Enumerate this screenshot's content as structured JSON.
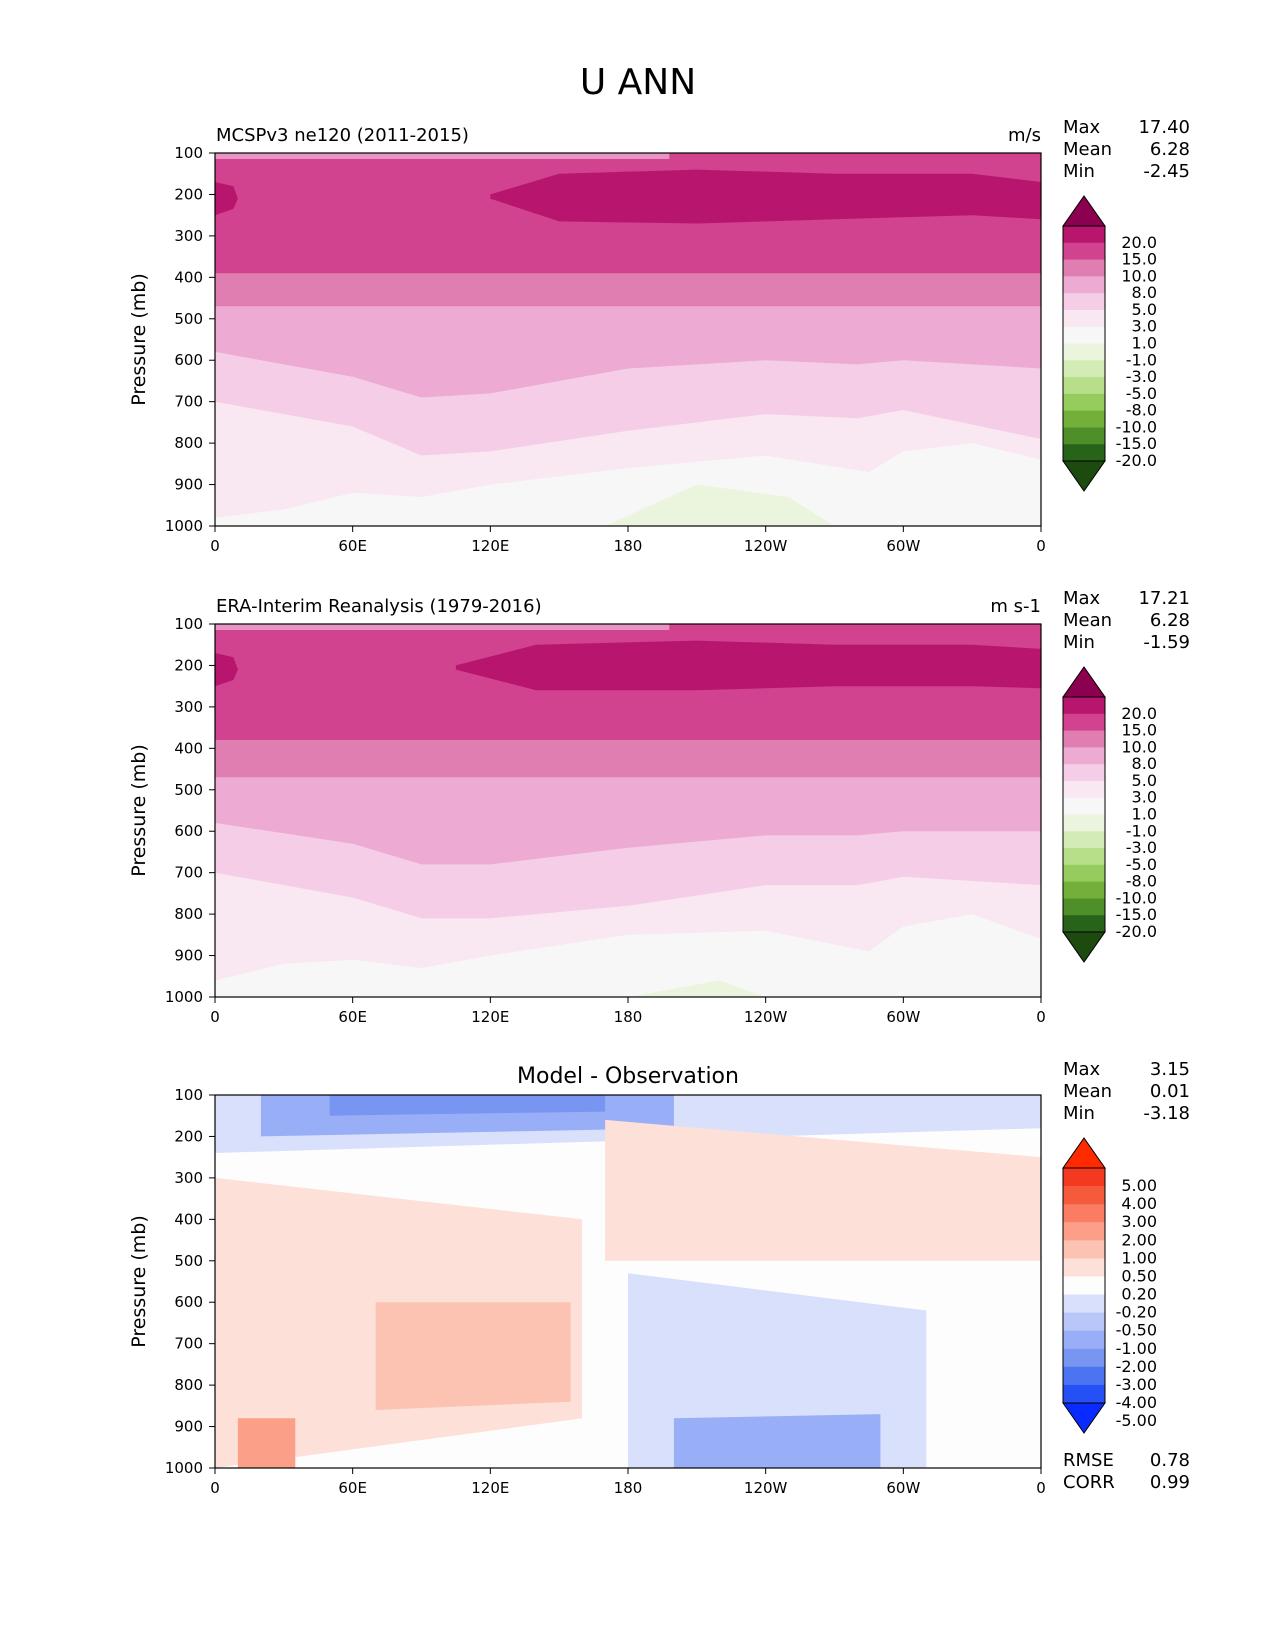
{
  "figure": {
    "title": "U ANN"
  },
  "x_ticks": [
    "0",
    "60E",
    "120E",
    "180",
    "120W",
    "60W",
    "0"
  ],
  "y_ticks": [
    "100",
    "200",
    "300",
    "400",
    "500",
    "600",
    "700",
    "800",
    "900",
    "1000"
  ],
  "colors": {
    "magenta_green": [
      "#8c0050",
      "#b8166e",
      "#d1428f",
      "#e07db1",
      "#edaad3",
      "#f6cde6",
      "#f9e7f2",
      "#f7f7f7",
      "#ebf5de",
      "#d3ecb5",
      "#b7df8a",
      "#96cc5e",
      "#73b03a",
      "#4f8f2a",
      "#276419",
      "#1c4a0f"
    ],
    "diff": [
      "#0a2bff",
      "#2450f5",
      "#4c73f1",
      "#7895f1",
      "#98aef6",
      "#b8c7f8",
      "#d8e0fb",
      "#fdfdfd",
      "#fde0d8",
      "#fcc3b2",
      "#fb9f88",
      "#f97c63",
      "#f65a3d",
      "#f33a20",
      "#ff2a00"
    ]
  },
  "panels": [
    {
      "title_left": "MCSPv3 ne120 (2011-2015)",
      "title_center": "",
      "units": "m/s",
      "ylabel": "Pressure (mb)",
      "stats": [
        [
          "Max",
          "17.40"
        ],
        [
          "Mean",
          "6.28"
        ],
        [
          "Min",
          "-2.45"
        ]
      ],
      "extra_stats": [],
      "colorbar_labels": [
        "20.0",
        "15.0",
        "10.0",
        "8.0",
        "5.0",
        "3.0",
        "1.0",
        "-1.0",
        "-3.0",
        "-5.0",
        "-8.0",
        "-10.0",
        "-15.0",
        "-20.0"
      ],
      "palette": "magenta_green"
    },
    {
      "title_left": "ERA-Interim Reanalysis (1979-2016)",
      "title_center": "",
      "units": "m s-1",
      "ylabel": "Pressure (mb)",
      "stats": [
        [
          "Max",
          "17.21"
        ],
        [
          "Mean",
          "6.28"
        ],
        [
          "Min",
          "-1.59"
        ]
      ],
      "extra_stats": [],
      "colorbar_labels": [
        "20.0",
        "15.0",
        "10.0",
        "8.0",
        "5.0",
        "3.0",
        "1.0",
        "-1.0",
        "-3.0",
        "-5.0",
        "-8.0",
        "-10.0",
        "-15.0",
        "-20.0"
      ],
      "palette": "magenta_green"
    },
    {
      "title_left": "",
      "title_center": "Model - Observation",
      "units": "",
      "ylabel": "Pressure (mb)",
      "stats": [
        [
          "Max",
          "3.15"
        ],
        [
          "Mean",
          "0.01"
        ],
        [
          "Min",
          "-3.18"
        ]
      ],
      "extra_stats": [
        [
          "RMSE",
          "0.78"
        ],
        [
          "CORR",
          "0.99"
        ]
      ],
      "colorbar_labels": [
        "5.00",
        "4.00",
        "3.00",
        "2.00",
        "1.00",
        "0.50",
        "0.20",
        "-0.20",
        "-0.50",
        "-1.00",
        "-2.00",
        "-3.00",
        "-4.00",
        "-5.00"
      ],
      "palette": "diff"
    }
  ],
  "chart_data": [
    {
      "type": "heatmap",
      "title": "MCSPv3 ne120 (2011-2015)",
      "units": "m/s",
      "ylabel": "Pressure (mb)",
      "x_range": [
        0,
        360
      ],
      "y_range": [
        1000,
        100
      ],
      "levels": [
        -20,
        -15,
        -10,
        -8,
        -5,
        -3,
        -1,
        1,
        3,
        5,
        8,
        10,
        15,
        20
      ],
      "layers": [
        {
          "level": 8,
          "x": [
            0,
            360
          ],
          "top": [
            100,
            100
          ],
          "bottom": [
            390,
            390
          ]
        },
        {
          "level": 5,
          "x": [
            0,
            360
          ],
          "top": [
            100,
            100
          ],
          "bottom": [
            470,
            470
          ]
        },
        {
          "level": 3,
          "x": [
            0,
            60,
            90,
            120,
            180,
            240,
            280,
            300,
            360
          ],
          "top": [
            100,
            100,
            100,
            100,
            100,
            100,
            100,
            100,
            100
          ],
          "bottom": [
            580,
            640,
            690,
            680,
            620,
            600,
            610,
            600,
            620
          ]
        },
        {
          "level": 1,
          "x": [
            0,
            60,
            90,
            120,
            180,
            240,
            280,
            300,
            360
          ],
          "top": [
            100,
            100,
            100,
            100,
            100,
            100,
            100,
            100,
            100
          ],
          "bottom": [
            700,
            760,
            830,
            820,
            770,
            730,
            740,
            720,
            790
          ]
        },
        {
          "level": -1,
          "x": [
            0,
            30,
            60,
            90,
            120,
            180,
            240,
            285,
            300,
            330,
            360
          ],
          "top": [
            100,
            100,
            100,
            100,
            100,
            100,
            100,
            100,
            100,
            100,
            100
          ],
          "bottom": [
            980,
            960,
            920,
            930,
            900,
            860,
            830,
            870,
            820,
            800,
            840
          ]
        },
        {
          "level": -3,
          "x": [
            170,
            210,
            250,
            270
          ],
          "top": [
            1000,
            900,
            930,
            1000
          ],
          "bottom": [
            1000,
            1000,
            1000,
            1000
          ]
        }
      ],
      "strong_core": {
        "level": 15,
        "x": [
          120,
          150,
          210,
          270,
          330,
          360
        ],
        "top": [
          200,
          150,
          140,
          150,
          150,
          170
        ],
        "bottom": [
          210,
          265,
          270,
          260,
          250,
          260
        ]
      },
      "stats": {
        "max": 17.4,
        "mean": 6.28,
        "min": -2.45
      }
    },
    {
      "type": "heatmap",
      "title": "ERA-Interim Reanalysis (1979-2016)",
      "units": "m s-1",
      "ylabel": "Pressure (mb)",
      "x_range": [
        0,
        360
      ],
      "y_range": [
        1000,
        100
      ],
      "levels": [
        -20,
        -15,
        -10,
        -8,
        -5,
        -3,
        -1,
        1,
        3,
        5,
        8,
        10,
        15,
        20
      ],
      "layers": [
        {
          "level": 8,
          "x": [
            0,
            360
          ],
          "top": [
            100,
            100
          ],
          "bottom": [
            380,
            380
          ]
        },
        {
          "level": 5,
          "x": [
            0,
            360
          ],
          "top": [
            100,
            100
          ],
          "bottom": [
            470,
            470
          ]
        },
        {
          "level": 3,
          "x": [
            0,
            60,
            90,
            120,
            180,
            240,
            280,
            300,
            360
          ],
          "top": [
            100,
            100,
            100,
            100,
            100,
            100,
            100,
            100,
            100
          ],
          "bottom": [
            580,
            630,
            680,
            680,
            640,
            610,
            610,
            600,
            600
          ]
        },
        {
          "level": 1,
          "x": [
            0,
            60,
            90,
            120,
            180,
            240,
            280,
            300,
            360
          ],
          "top": [
            100,
            100,
            100,
            100,
            100,
            100,
            100,
            100,
            100
          ],
          "bottom": [
            700,
            760,
            810,
            810,
            780,
            730,
            730,
            710,
            730
          ]
        },
        {
          "level": -1,
          "x": [
            0,
            30,
            60,
            90,
            120,
            180,
            240,
            285,
            300,
            330,
            360
          ],
          "top": [
            100,
            100,
            100,
            100,
            100,
            100,
            100,
            100,
            100,
            100,
            100
          ],
          "bottom": [
            960,
            920,
            910,
            930,
            900,
            850,
            840,
            890,
            830,
            800,
            860
          ]
        },
        {
          "level": -3,
          "x": [
            180,
            220,
            240
          ],
          "top": [
            1000,
            960,
            1000
          ],
          "bottom": [
            1000,
            1000,
            1000
          ]
        }
      ],
      "strong_core": {
        "level": 15,
        "x": [
          105,
          140,
          210,
          270,
          330,
          360
        ],
        "top": [
          200,
          150,
          140,
          150,
          150,
          160
        ],
        "bottom": [
          210,
          260,
          260,
          250,
          250,
          255
        ]
      },
      "stats": {
        "max": 17.21,
        "mean": 6.28,
        "min": -1.59
      }
    },
    {
      "type": "heatmap",
      "title": "Model - Observation",
      "ylabel": "Pressure (mb)",
      "x_range": [
        0,
        360
      ],
      "y_range": [
        1000,
        100
      ],
      "levels": [
        -5,
        -4,
        -3,
        -2,
        -1,
        -0.5,
        -0.2,
        0.2,
        0.5,
        1,
        2,
        3,
        4,
        5
      ],
      "regions": [
        {
          "level": -0.5,
          "x": [
            0,
            360
          ],
          "top": [
            100,
            100
          ],
          "bottom": [
            240,
            180
          ]
        },
        {
          "level": -1.0,
          "x": [
            20,
            200
          ],
          "top": [
            100,
            100
          ],
          "bottom": [
            200,
            180
          ]
        },
        {
          "level": -2.0,
          "x": [
            50,
            170
          ],
          "top": [
            100,
            100
          ],
          "bottom": [
            150,
            140
          ]
        },
        {
          "level": 0.5,
          "x": [
            0,
            160
          ],
          "top": [
            300,
            400
          ],
          "bottom": [
            1000,
            880
          ]
        },
        {
          "level": 0.5,
          "x": [
            170,
            360
          ],
          "top": [
            160,
            250
          ],
          "bottom": [
            500,
            500
          ]
        },
        {
          "level": 1.0,
          "x": [
            70,
            155
          ],
          "top": [
            600,
            600
          ],
          "bottom": [
            860,
            840
          ]
        },
        {
          "level": 2.0,
          "x": [
            10,
            35
          ],
          "top": [
            880,
            880
          ],
          "bottom": [
            1000,
            1000
          ]
        },
        {
          "level": -0.5,
          "x": [
            180,
            310
          ],
          "top": [
            530,
            620
          ],
          "bottom": [
            1000,
            1000
          ]
        },
        {
          "level": -1.0,
          "x": [
            200,
            290
          ],
          "top": [
            880,
            870
          ],
          "bottom": [
            1000,
            1000
          ]
        }
      ],
      "stats": {
        "max": 3.15,
        "mean": 0.01,
        "min": -3.18,
        "rmse": 0.78,
        "corr": 0.99
      }
    }
  ]
}
